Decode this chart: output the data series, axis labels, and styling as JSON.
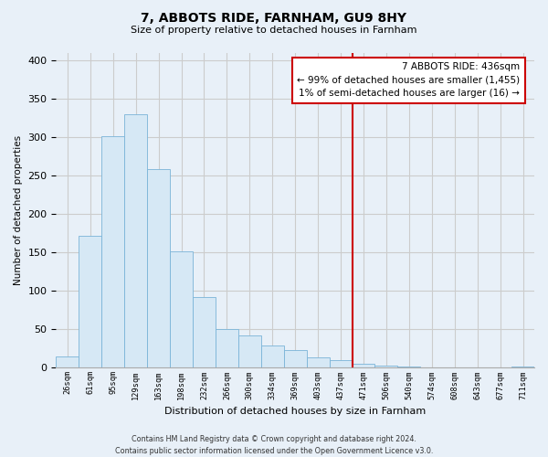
{
  "title": "7, ABBOTS RIDE, FARNHAM, GU9 8HY",
  "subtitle": "Size of property relative to detached houses in Farnham",
  "xlabel": "Distribution of detached houses by size in Farnham",
  "ylabel": "Number of detached properties",
  "bar_labels": [
    "26sqm",
    "61sqm",
    "95sqm",
    "129sqm",
    "163sqm",
    "198sqm",
    "232sqm",
    "266sqm",
    "300sqm",
    "334sqm",
    "369sqm",
    "403sqm",
    "437sqm",
    "471sqm",
    "506sqm",
    "540sqm",
    "574sqm",
    "608sqm",
    "643sqm",
    "677sqm",
    "711sqm"
  ],
  "bar_values": [
    15,
    172,
    301,
    330,
    259,
    152,
    92,
    50,
    42,
    29,
    23,
    13,
    10,
    5,
    3,
    2,
    1,
    1,
    0,
    0,
    2
  ],
  "bar_color": "#d6e8f5",
  "bar_edge_color": "#7ab4d8",
  "vline_x_index": 12,
  "vline_color": "#cc0000",
  "annotation_title": "7 ABBOTS RIDE: 436sqm",
  "annotation_line1": "← 99% of detached houses are smaller (1,455)",
  "annotation_line2": "1% of semi-detached houses are larger (16) →",
  "annotation_box_facecolor": "#ffffff",
  "annotation_box_edgecolor": "#cc0000",
  "grid_color": "#cccccc",
  "background_color": "#e8f0f8",
  "plot_bg_color": "#e8f0f8",
  "footer_line1": "Contains HM Land Registry data © Crown copyright and database right 2024.",
  "footer_line2": "Contains public sector information licensed under the Open Government Licence v3.0.",
  "ylim": [
    0,
    410
  ],
  "yticks": [
    0,
    50,
    100,
    150,
    200,
    250,
    300,
    350,
    400
  ]
}
